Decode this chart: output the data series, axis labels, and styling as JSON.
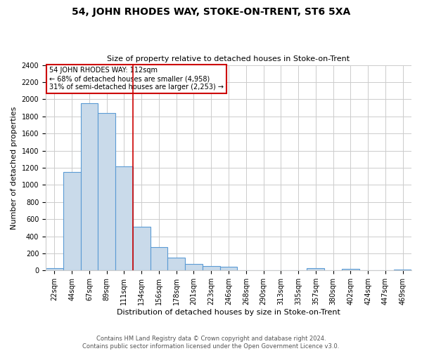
{
  "title": "54, JOHN RHODES WAY, STOKE-ON-TRENT, ST6 5XA",
  "subtitle": "Size of property relative to detached houses in Stoke-on-Trent",
  "xlabel": "Distribution of detached houses by size in Stoke-on-Trent",
  "ylabel": "Number of detached properties",
  "bar_labels": [
    "22sqm",
    "44sqm",
    "67sqm",
    "89sqm",
    "111sqm",
    "134sqm",
    "156sqm",
    "178sqm",
    "201sqm",
    "223sqm",
    "246sqm",
    "268sqm",
    "290sqm",
    "313sqm",
    "335sqm",
    "357sqm",
    "380sqm",
    "402sqm",
    "424sqm",
    "447sqm",
    "469sqm"
  ],
  "bar_values": [
    25,
    1150,
    1950,
    1840,
    1220,
    510,
    270,
    150,
    80,
    50,
    40,
    0,
    0,
    0,
    0,
    30,
    0,
    20,
    0,
    0,
    15
  ],
  "bar_color": "#c9daea",
  "bar_edge_color": "#5b9bd5",
  "marker_idx": 4,
  "annotation_lines": [
    "54 JOHN RHODES WAY: 112sqm",
    "← 68% of detached houses are smaller (4,958)",
    "31% of semi-detached houses are larger (2,253) →"
  ],
  "annotation_box_color": "#ffffff",
  "annotation_box_edge": "#cc0000",
  "ylim": [
    0,
    2400
  ],
  "yticks": [
    0,
    200,
    400,
    600,
    800,
    1000,
    1200,
    1400,
    1600,
    1800,
    2000,
    2200,
    2400
  ],
  "footer_line1": "Contains HM Land Registry data © Crown copyright and database right 2024.",
  "footer_line2": "Contains public sector information licensed under the Open Government Licence v3.0.",
  "background_color": "#ffffff",
  "grid_color": "#cccccc",
  "title_fontsize": 10,
  "subtitle_fontsize": 8,
  "axis_label_fontsize": 8,
  "tick_fontsize": 7,
  "footer_fontsize": 6
}
